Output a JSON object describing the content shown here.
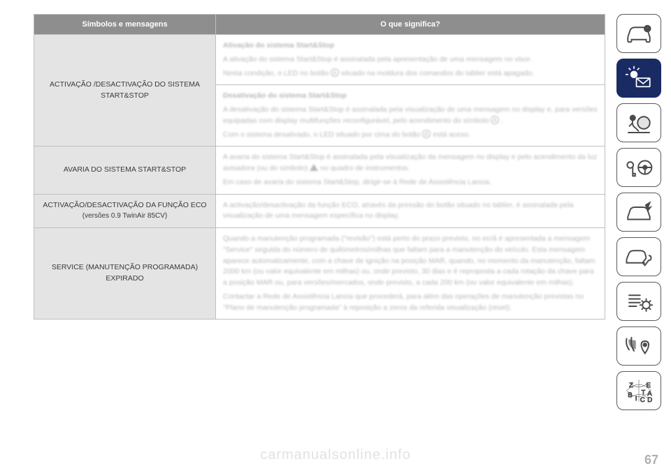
{
  "colors": {
    "header_bg": "#8e8e8e",
    "header_text": "#ffffff",
    "label_bg": "#e4e4e4",
    "border": "#bfbfbf",
    "active_bg": "#1a2b63",
    "blur_text": "#b8b8b8"
  },
  "headers": {
    "left": "Símbolos e mensagens",
    "right": "O que significa?"
  },
  "rows": [
    {
      "label": "ACTIVAÇÃO /DESACTIVAÇÃO DO SISTEMA START&STOP",
      "desc_parts": [
        {
          "bold": true,
          "t": "Ativação do sistema Start&Stop"
        },
        {
          "t": "A ativação do sistema Start&Stop é assinalada pela apresentação de uma mensagem no visor."
        },
        {
          "t": "Nesta condição, o LED no botão ",
          "icon": "a",
          "tail": " situado na moldura dos comandos do tablier está apagado."
        }
      ],
      "desc2_parts": [
        {
          "bold": true,
          "t": "Desativação do sistema Start&Stop"
        },
        {
          "t": "A desativação do sistema Start&Stop é assinalada pela visualização de uma mensagem no display e, para versões equipadas com display multifunções reconfigurável, pelo acendimento do símbolo ",
          "icon": "a",
          "tail": " ."
        },
        {
          "t": "Com o sistema desativado, o LED situado por cima do botão ",
          "icon": "a",
          "tail": " está aceso."
        }
      ]
    },
    {
      "label": "AVARIA DO SISTEMA START&STOP",
      "desc_parts": [
        {
          "t": "A avaria do sistema Start&Stop é assinalada pela visualização da mensagem no display e pelo acendimento da luz avisadora (ou do símbolo) ",
          "warn": true,
          "tail": " no quadro de instrumentos."
        },
        {
          "t": "Em caso de avaria do sistema Start&Stop, dirigir-se à Rede de Assistência Lancia."
        }
      ]
    },
    {
      "label": "ACTIVAÇÃO/DESACTIVAÇÃO DA FUNÇÃO ECO",
      "sublabel": "(versões 0.9 TwinAir 85CV)",
      "desc_parts": [
        {
          "t": "A activação/desactivação da função ECO, através da pressão do botão situado no tablier, é assinalada pela visualização de uma mensagem específica no display."
        }
      ]
    },
    {
      "label": "SERVICE (MANUTENÇÃO PROGRAMADA) EXPIRADO",
      "desc_parts": [
        {
          "t": "Quando a manutenção programada (\"revisão\") está perto do prazo previsto, no ecrã é apresentada a mensagem \"Service\" seguida do número de quilómetros/milhas que faltam para a manutenção do veículo. Esta mensagem aparece automaticamente, com a chave de ignição na posição MAR, quando, no momento da manutenção, faltam 2000 km (ou valor equivalente em milhas) ou, onde previsto, 30 dias e é reproposta a cada rotação da chave para a posição MAR ou, para versões/mercados, onde previsto, a cada 200 km (ou valor equivalente em milhas)."
        },
        {
          "t": "Contactar a Rede de Assistência Lancia que procederá, para além das operações de manutenção previstas no \"Plano de manutenção programada\" à reposição a zeros da referida visualização (reset)."
        }
      ]
    }
  ],
  "sidebar": [
    {
      "name": "car-info-icon",
      "active": false
    },
    {
      "name": "light-mail-icon",
      "active": true
    },
    {
      "name": "airbag-icon",
      "active": false
    },
    {
      "name": "key-steering-icon",
      "active": false
    },
    {
      "name": "car-crash-icon",
      "active": false
    },
    {
      "name": "car-wrench-icon",
      "active": false
    },
    {
      "name": "list-gear-icon",
      "active": false
    },
    {
      "name": "media-location-icon",
      "active": false
    },
    {
      "name": "alphabet-icon",
      "active": false
    }
  ],
  "footer": {
    "site": "carmanualsonline.info",
    "page": "67"
  }
}
